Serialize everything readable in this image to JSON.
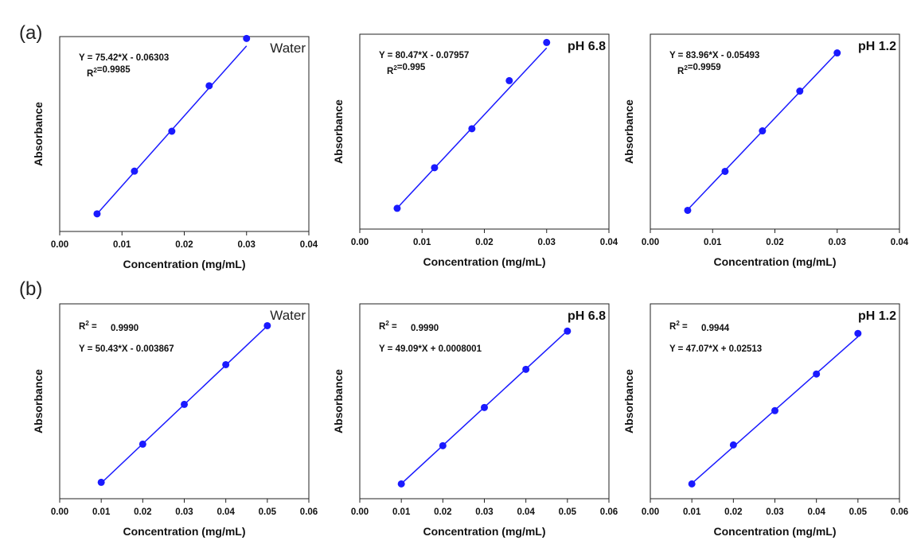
{
  "rows": [
    {
      "label": "(a)"
    },
    {
      "label": "(b)"
    }
  ],
  "style": {
    "marker_color": "#1a1aff",
    "line_color": "#1a1aff",
    "axis_color": "#222222"
  },
  "chart_data": [
    {
      "id": "a-water",
      "type": "scatter",
      "title": "Water",
      "title_style": "plain",
      "xlabel": "Concentration (mg/mL)",
      "ylabel": "Absorbance",
      "xlim": [
        0,
        0.04
      ],
      "xticks": [
        "0.00",
        "0.01",
        "0.02",
        "0.03",
        "0.04"
      ],
      "ylim": [
        0.2,
        2.3
      ],
      "x": [
        0.006,
        0.012,
        0.018,
        0.024,
        0.03
      ],
      "y": [
        0.39,
        0.85,
        1.28,
        1.77,
        2.28
      ],
      "fit": {
        "slope": 75.42,
        "intercept": -0.06303
      },
      "equation": "Y = 75.42*X - 0.06303",
      "r2_label": "R",
      "r2_value": "=0.9985",
      "order": "eq-first"
    },
    {
      "id": "a-ph68",
      "type": "scatter",
      "title": "pH 6.8",
      "title_style": "bold",
      "xlabel": "Concentration (mg/mL)",
      "ylabel": "Absorbance",
      "xlim": [
        0,
        0.04
      ],
      "xticks": [
        "0.00",
        "0.01",
        "0.02",
        "0.03",
        "0.04"
      ],
      "ylim": [
        0.15,
        2.5
      ],
      "x": [
        0.006,
        0.012,
        0.018,
        0.024,
        0.03
      ],
      "y": [
        0.4,
        0.89,
        1.36,
        1.94,
        2.4
      ],
      "fit": {
        "slope": 80.47,
        "intercept": -0.07957
      },
      "equation": "Y = 80.47*X - 0.07957",
      "r2_label": "R",
      "r2_value": "=0.995",
      "order": "eq-first"
    },
    {
      "id": "a-ph12",
      "type": "scatter",
      "title": "pH 1.2",
      "title_style": "bold",
      "xlabel": "Concentration (mg/mL)",
      "ylabel": "Absorbance",
      "xlim": [
        0,
        0.04
      ],
      "xticks": [
        "0.00",
        "0.01",
        "0.02",
        "0.03",
        "0.04"
      ],
      "ylim": [
        0.2,
        2.7
      ],
      "x": [
        0.006,
        0.012,
        0.018,
        0.024,
        0.03
      ],
      "y": [
        0.44,
        0.94,
        1.46,
        1.97,
        2.46
      ],
      "fit": {
        "slope": 83.96,
        "intercept": -0.05493
      },
      "equation": "Y = 83.96*X - 0.05493",
      "r2_label": "R",
      "r2_value": "=0.9959",
      "order": "eq-first"
    },
    {
      "id": "b-water",
      "type": "scatter",
      "title": "Water",
      "title_style": "plain",
      "xlabel": "Concentration (mg/mL)",
      "ylabel": "Absorbance",
      "xlim": [
        0,
        0.06
      ],
      "xticks": [
        "0.00",
        "0.01",
        "0.02",
        "0.03",
        "0.04",
        "0.05",
        "0.06"
      ],
      "ylim": [
        0.3,
        2.8
      ],
      "x": [
        0.01,
        0.02,
        0.03,
        0.04,
        0.05
      ],
      "y": [
        0.51,
        1.0,
        1.51,
        2.02,
        2.52
      ],
      "fit": {
        "slope": 50.43,
        "intercept": -0.003867
      },
      "equation": "Y = 50.43*X - 0.003867",
      "r2_label": "R",
      "r2_value": "0.9990",
      "order": "r2-first"
    },
    {
      "id": "b-ph68",
      "type": "scatter",
      "title": "pH 6.8",
      "title_style": "bold",
      "xlabel": "Concentration (mg/mL)",
      "ylabel": "Absorbance",
      "xlim": [
        0,
        0.06
      ],
      "xticks": [
        "0.00",
        "0.01",
        "0.02",
        "0.03",
        "0.04",
        "0.05",
        "0.06"
      ],
      "ylim": [
        0.3,
        2.8
      ],
      "x": [
        0.01,
        0.02,
        0.03,
        0.04,
        0.05
      ],
      "y": [
        0.49,
        0.98,
        1.47,
        1.96,
        2.45
      ],
      "fit": {
        "slope": 49.09,
        "intercept": 0.0008001
      },
      "equation": "Y = 49.09*X + 0.0008001",
      "r2_label": "R",
      "r2_value": "0.9990",
      "order": "r2-first"
    },
    {
      "id": "b-ph12",
      "type": "scatter",
      "title": "pH 1.2",
      "title_style": "bold",
      "xlabel": "Concentration (mg/mL)",
      "ylabel": "Absorbance",
      "xlim": [
        0,
        0.06
      ],
      "xticks": [
        "0.00",
        "0.01",
        "0.02",
        "0.03",
        "0.04",
        "0.05",
        "0.06"
      ],
      "ylim": [
        0.3,
        2.8
      ],
      "x": [
        0.01,
        0.02,
        0.03,
        0.04,
        0.05
      ],
      "y": [
        0.49,
        0.99,
        1.43,
        1.9,
        2.42
      ],
      "fit": {
        "slope": 47.07,
        "intercept": 0.02513
      },
      "equation": "Y = 47.07*X + 0.02513",
      "r2_label": "R",
      "r2_value": "0.9944",
      "order": "r2-first"
    }
  ]
}
